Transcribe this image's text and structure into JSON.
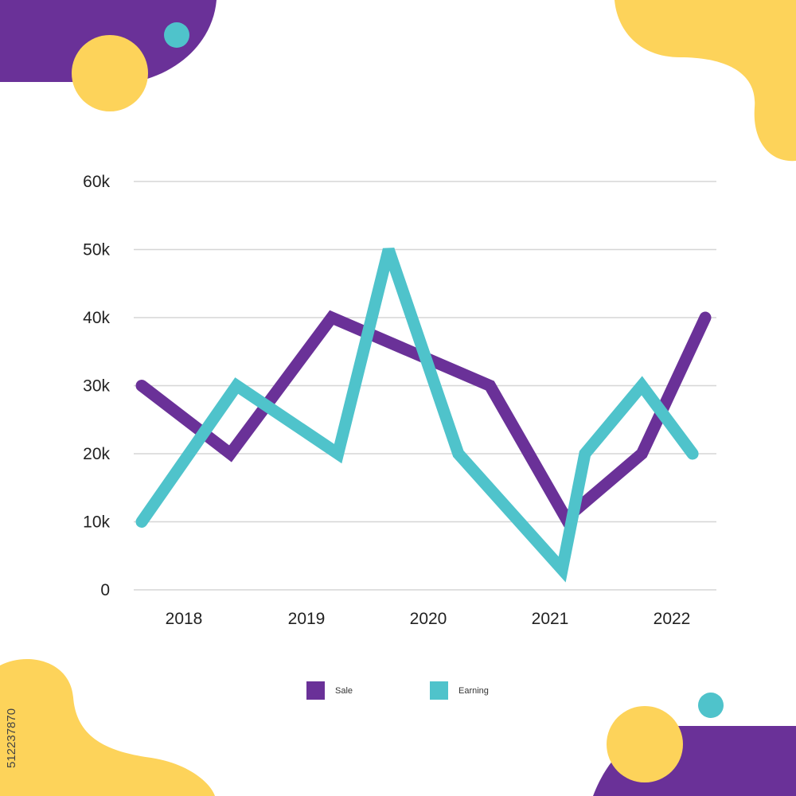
{
  "colors": {
    "purple": "#6a3198",
    "teal": "#4fc3cb",
    "yellow": "#fdd35a",
    "grid": "#d6d6d6",
    "text": "#222222"
  },
  "watermark_id": "512237870",
  "chart_data": {
    "type": "line",
    "title": "",
    "xlabel": "",
    "ylabel": "",
    "ylim": [
      0,
      60000
    ],
    "grid": true,
    "legend_position": "bottom-center",
    "y_ticks": [
      {
        "value": 0,
        "label": "0"
      },
      {
        "value": 10000,
        "label": "10k"
      },
      {
        "value": 20000,
        "label": "20k"
      },
      {
        "value": 30000,
        "label": "30k"
      },
      {
        "value": 40000,
        "label": "40k"
      },
      {
        "value": 50000,
        "label": "50k"
      },
      {
        "value": 60000,
        "label": "60k"
      }
    ],
    "x_ticks": [
      {
        "value": 2018,
        "label": "2018"
      },
      {
        "value": 2019,
        "label": "2019"
      },
      {
        "value": 2020,
        "label": "2020"
      },
      {
        "value": 2021,
        "label": "2021"
      },
      {
        "value": 2022,
        "label": "2022"
      }
    ],
    "xlim": [
      2017.3,
      2022.1
    ],
    "series": [
      {
        "name": "Sale",
        "color": "#6a3198",
        "points": [
          {
            "x": 2017.65,
            "y": 30000
          },
          {
            "x": 2018.35,
            "y": 20000
          },
          {
            "x": 2019.15,
            "y": 40000
          },
          {
            "x": 2020.4,
            "y": 30000
          },
          {
            "x": 2021.0,
            "y": 10500
          },
          {
            "x": 2021.6,
            "y": 20000
          },
          {
            "x": 2022.1,
            "y": 40000
          }
        ]
      },
      {
        "name": "Earning",
        "color": "#4fc3cb",
        "points": [
          {
            "x": 2017.65,
            "y": 10000
          },
          {
            "x": 2018.4,
            "y": 30000
          },
          {
            "x": 2019.2,
            "y": 20000
          },
          {
            "x": 2019.6,
            "y": 50000
          },
          {
            "x": 2020.15,
            "y": 20000
          },
          {
            "x": 2020.97,
            "y": 3000
          },
          {
            "x": 2021.15,
            "y": 20000
          },
          {
            "x": 2021.6,
            "y": 30000
          },
          {
            "x": 2022.0,
            "y": 20000
          }
        ]
      }
    ]
  }
}
